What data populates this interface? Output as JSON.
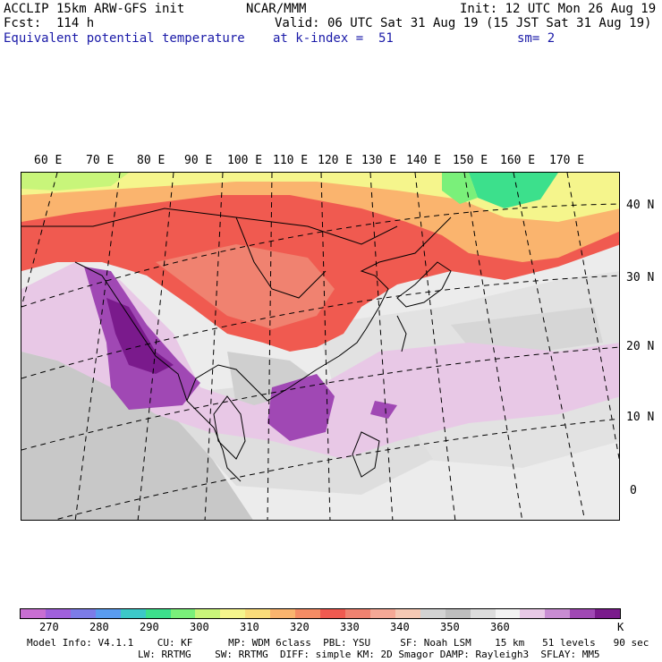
{
  "header": {
    "model_title": "ACCLIP 15km ARW-GFS init",
    "forecast": "Fcst:  114 h",
    "field_name": "Equivalent potential temperature",
    "org": "NCAR/MMM",
    "init": "Init: 12 UTC Mon 26 Aug 19",
    "valid": "Valid: 06 UTC Sat 31 Aug 19 (15 JST Sat 31 Aug 19)",
    "level": "at k-index =  51",
    "smoothing": "sm= 2"
  },
  "map": {
    "longitude_labels": [
      "60 E",
      "70 E",
      "80 E",
      "90 E",
      "100 E",
      "110 E",
      "120 E",
      "130 E",
      "140 E",
      "150 E",
      "160 E",
      "170 E"
    ],
    "latitude_labels": [
      "40 N",
      "30 N",
      "20 N",
      "10 N",
      "0"
    ]
  },
  "colorbar": {
    "unit": "K",
    "tick_labels": [
      "270",
      "280",
      "290",
      "300",
      "310",
      "320",
      "330",
      "340",
      "350",
      "360"
    ],
    "colors": [
      "#c86ed2",
      "#a060dc",
      "#7c7ce8",
      "#5a9cf0",
      "#3cc8c8",
      "#3ce08c",
      "#7af07a",
      "#c8f57a",
      "#f5f58c",
      "#fadc7a",
      "#fab46e",
      "#f58c64",
      "#f05a50",
      "#f08270",
      "#f5a896",
      "#f5c8b4",
      "#d2d2d2",
      "#bebebe",
      "#dcdcdc",
      "#f2f2f2",
      "#e8c8e6",
      "#c88cd2",
      "#a048b4",
      "#7a1a8c"
    ]
  },
  "footer": {
    "line1": "Model Info: V4.1.1    CU: KF      MP: WDM 6class  PBL: YSU     SF: Noah LSM    15 km   51 levels   90 sec",
    "line2": "LW: RRTMG    SW: RRTMG  DIFF: simple KM: 2D Smagor DAMP: Rayleigh3  SFLAY: MM5"
  }
}
